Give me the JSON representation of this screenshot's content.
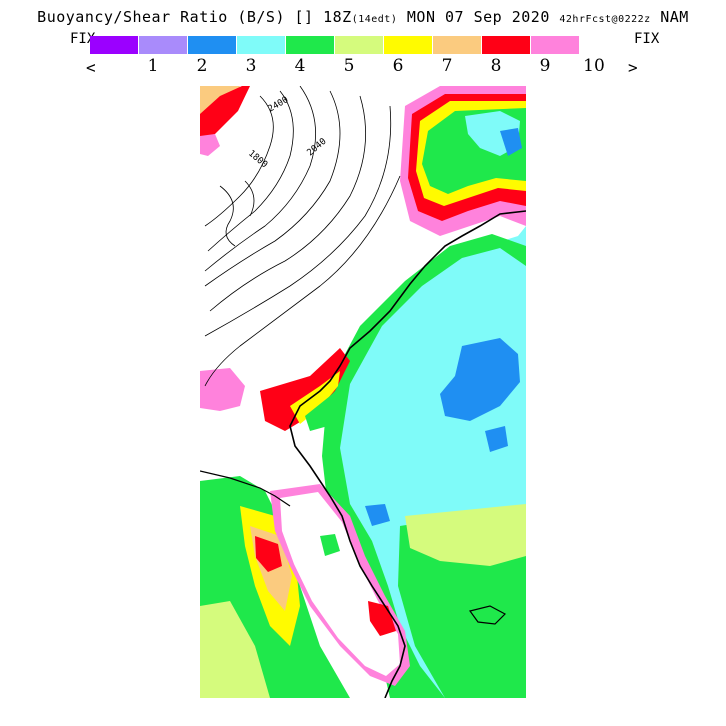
{
  "header": {
    "title_main": "Buoyancy/Shear Ratio (B/S)",
    "title_sep": "[] 18Z",
    "title_local": "(14edt)",
    "title_date": "MON 07 Sep 2020",
    "title_fcst": "42hrFcst@0222z",
    "title_model": "NAM"
  },
  "controls": {
    "fix_left": "FIX",
    "fix_right": "FIX",
    "prev": "<",
    "next": ">"
  },
  "legend": {
    "colors": [
      "#9b00ff",
      "#a98bfb",
      "#1f8ff2",
      "#7ffbf9",
      "#1fe84b",
      "#d5fb7d",
      "#fffb00",
      "#fbcb7f",
      "#ff0016",
      "#ff82dc"
    ],
    "ticks": [
      "1",
      "2",
      "3",
      "4",
      "5",
      "6",
      "7",
      "8",
      "9",
      "10"
    ]
  },
  "map": {
    "field": "buoyancy-shear-ratio",
    "contour_labels": [
      "2400",
      "1800",
      "2040"
    ]
  }
}
